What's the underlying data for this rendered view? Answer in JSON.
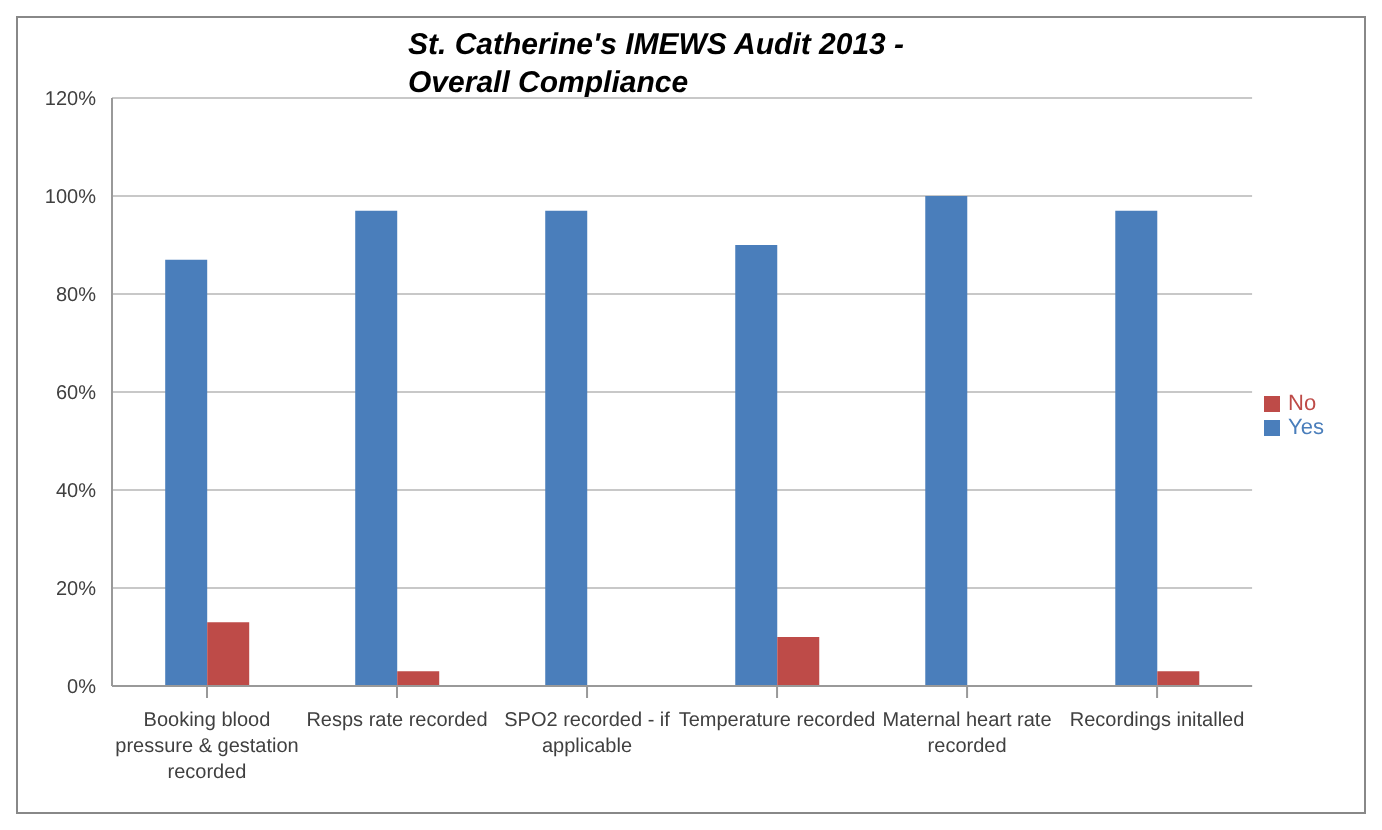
{
  "chart_data": {
    "type": "bar",
    "title": "St. Catherine's IMEWS Audit 2013 - Overall Compliance",
    "categories": [
      "Booking blood pressure & gestation recorded",
      "Resps rate recorded",
      "SPO2 recorded - if applicable",
      "Temperature recorded",
      "Maternal heart rate recorded",
      "Recordings initalled"
    ],
    "series": [
      {
        "name": "Yes",
        "color": "#4a7ebb",
        "values": [
          87,
          97,
          97,
          90,
          100,
          97
        ]
      },
      {
        "name": "No",
        "color": "#be4b48",
        "values": [
          13,
          3,
          0,
          10,
          0,
          3
        ]
      }
    ],
    "ylim": [
      0,
      120
    ],
    "yticks": [
      {
        "value": 0,
        "label": "0%"
      },
      {
        "value": 20,
        "label": "20%"
      },
      {
        "value": 40,
        "label": "40%"
      },
      {
        "value": 60,
        "label": "60%"
      },
      {
        "value": 80,
        "label": "80%"
      },
      {
        "value": 100,
        "label": "100%"
      },
      {
        "value": 120,
        "label": "120%"
      }
    ],
    "grid": "y",
    "legend": "right"
  }
}
